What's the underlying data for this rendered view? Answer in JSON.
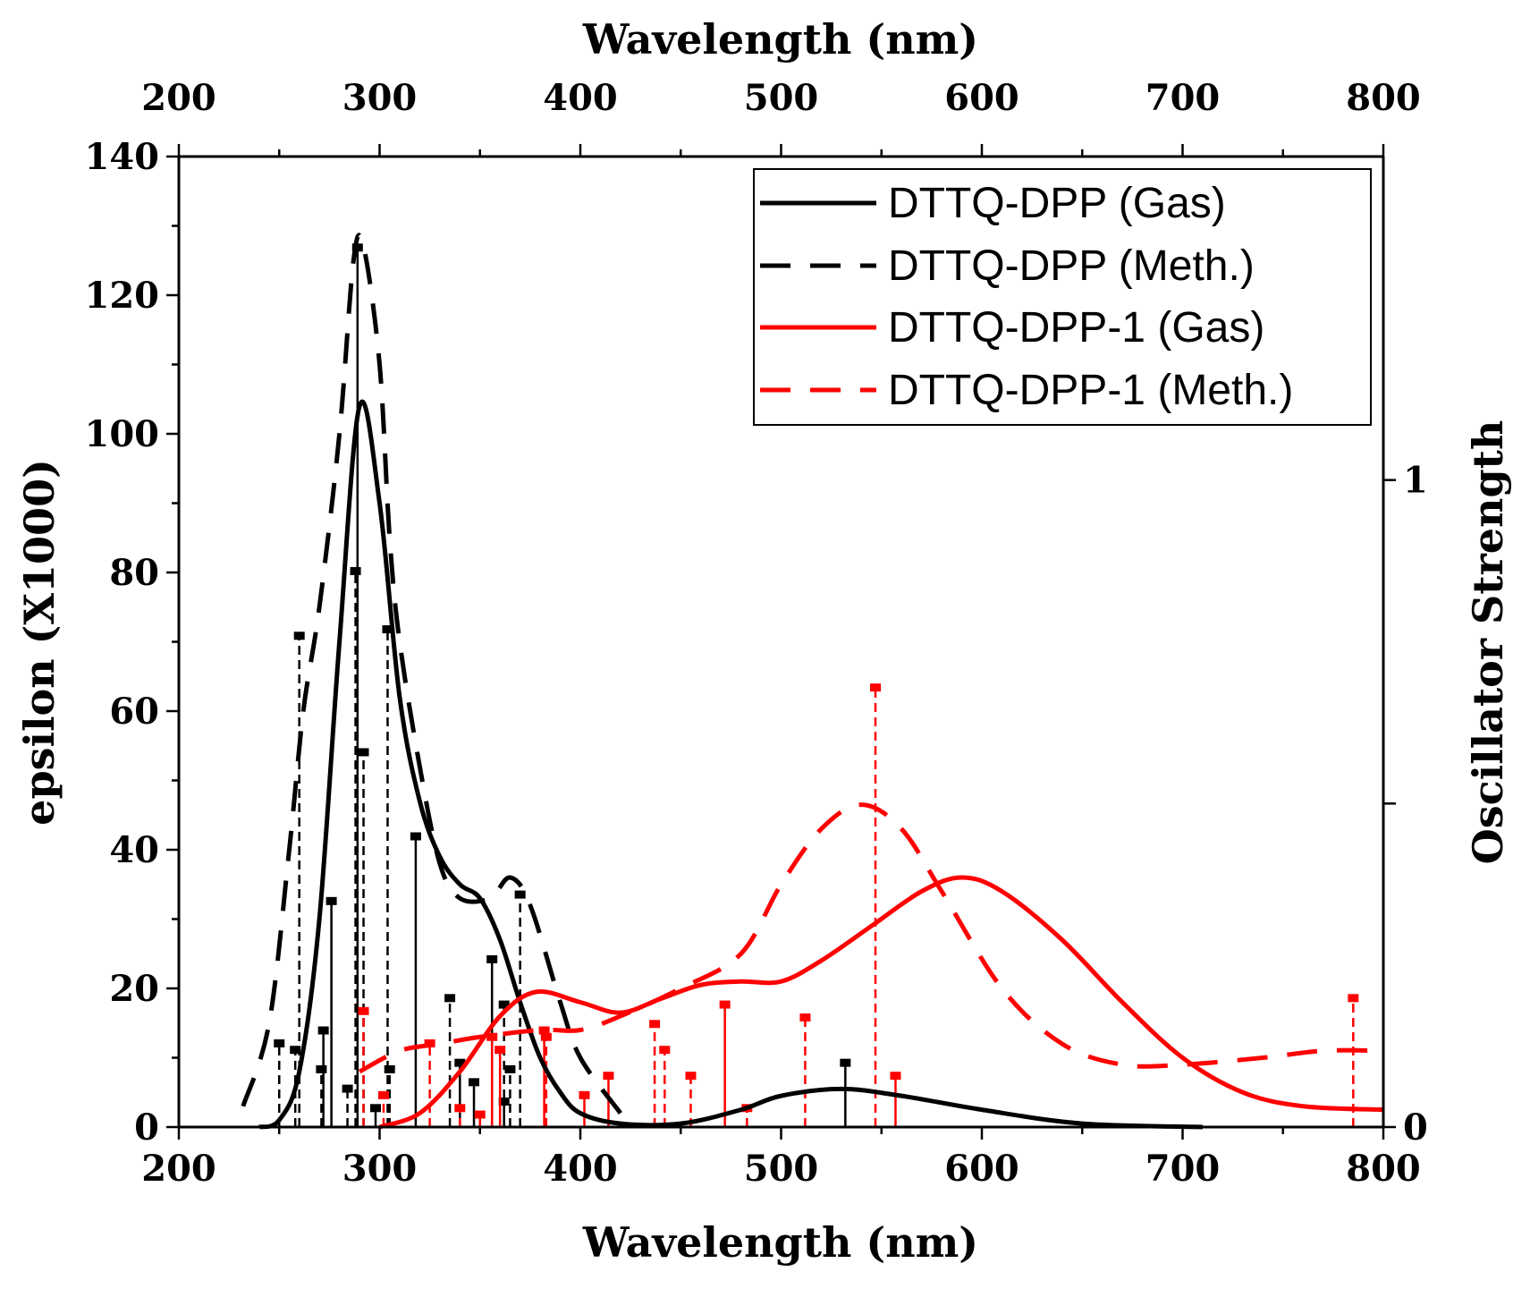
{
  "chart_data": {
    "type": "line",
    "title": "",
    "xlabel": "Wavelength (nm)",
    "x2label": "Wavelength (nm)",
    "ylabel": "epsilon (X1000)",
    "y2label": "Oscillator Strength",
    "xlim": [
      200,
      800
    ],
    "ylim": [
      0,
      140
    ],
    "y2lim": [
      0,
      1.5
    ],
    "xticks": [
      200,
      300,
      400,
      500,
      600,
      700,
      800
    ],
    "yticks": [
      0,
      20,
      40,
      60,
      80,
      100,
      120,
      140
    ],
    "y2ticks": [
      0,
      0.5,
      1
    ],
    "y2ticklabels": [
      "0",
      "",
      "1"
    ],
    "grid": false,
    "legend_position": "top-right",
    "series": [
      {
        "name": "DTTQ-DPP (Gas)",
        "color": "#000000",
        "style": "solid",
        "x": [
          240,
          250,
          260,
          270,
          280,
          290,
          300,
          310,
          320,
          330,
          340,
          350,
          360,
          370,
          380,
          390,
          400,
          420,
          450,
          480,
          500,
          530,
          560,
          600,
          650,
          710
        ],
        "y": [
          0,
          1,
          8,
          30,
          70,
          104,
          90,
          62,
          47,
          39,
          35,
          33,
          27,
          18,
          10,
          5,
          2,
          0.5,
          0.5,
          2.5,
          4.5,
          5.5,
          4.5,
          2.5,
          0.5,
          0
        ],
        "sticks": {
          "x": [
            272,
            276,
            289,
            298,
            318,
            340,
            347,
            356,
            362,
            532
          ],
          "f": [
            0.15,
            0.35,
            1.36,
            0.03,
            0.45,
            0.1,
            0.07,
            0.26,
            0.04,
            0.1
          ]
        }
      },
      {
        "name": "DTTQ-DPP (Meth.)",
        "color": "#000000",
        "style": "dashed",
        "x": [
          232,
          245,
          255,
          262,
          270,
          280,
          287,
          292,
          300,
          305,
          310,
          320,
          330,
          340,
          355,
          365,
          375,
          390,
          400,
          420
        ],
        "y": [
          3,
          15,
          40,
          60,
          75,
          100,
          125,
          127,
          110,
          85,
          70,
          52,
          38,
          33,
          33,
          36,
          32,
          18,
          10,
          2
        ],
        "sticks": {
          "x": [
            250,
            258,
            260,
            271,
            284,
            288,
            292,
            304,
            305,
            335,
            362,
            365,
            370
          ],
          "f": [
            0.13,
            0.12,
            0.76,
            0.09,
            0.06,
            0.86,
            0.58,
            0.77,
            0.09,
            0.2,
            0.19,
            0.09,
            0.36
          ]
        }
      },
      {
        "name": "DTTQ-DPP-1 (Gas)",
        "color": "#ff0000",
        "style": "solid",
        "x": [
          300,
          320,
          340,
          360,
          378,
          400,
          420,
          440,
          460,
          480,
          500,
          520,
          545,
          570,
          590,
          610,
          640,
          670,
          700,
          730,
          760,
          800
        ],
        "y": [
          0,
          2,
          8,
          16,
          19.5,
          18,
          16.5,
          18.5,
          20.5,
          21,
          21,
          24,
          29,
          34,
          36,
          34,
          27,
          18,
          10,
          5,
          3,
          2.5
        ],
        "sticks": {
          "x": [
            356,
            360,
            382,
            402,
            414,
            472,
            557
          ],
          "f": [
            0.14,
            0.12,
            0.15,
            0.05,
            0.08,
            0.19,
            0.08
          ]
        }
      },
      {
        "name": "DTTQ-DPP-1 (Meth.)",
        "color": "#ff0000",
        "style": "dashed",
        "x": [
          290,
          310,
          330,
          350,
          380,
          400,
          420,
          450,
          480,
          500,
          520,
          540,
          560,
          580,
          610,
          640,
          670,
          700,
          740,
          770,
          800
        ],
        "y": [
          8,
          11,
          12,
          13,
          14,
          14,
          16,
          20,
          25,
          35,
          43,
          46.5,
          43,
          34,
          20,
          12,
          9,
          9,
          10,
          11,
          11
        ],
        "sticks": {
          "x": [
            292,
            302,
            325,
            340,
            350,
            383,
            437,
            442,
            455,
            483,
            512,
            547,
            785
          ],
          "f": [
            0.18,
            0.05,
            0.13,
            0.03,
            0.02,
            0.14,
            0.16,
            0.12,
            0.08,
            0.03,
            0.17,
            0.68,
            0.2
          ]
        }
      }
    ]
  }
}
